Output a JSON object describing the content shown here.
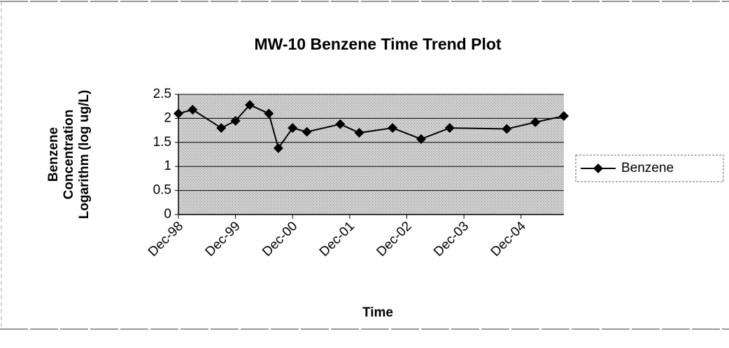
{
  "chart_data": {
    "type": "line",
    "title": "MW-10 Benzene Time Trend Plot",
    "xlabel": "Time",
    "ylabel": [
      "Benzene",
      "Concentration",
      "Logarithm (log ug/L)"
    ],
    "x": [
      "1998-12",
      "1999-03",
      "1999-09",
      "1999-12",
      "2000-03",
      "2000-07",
      "2000-09",
      "2000-12",
      "2001-03",
      "2001-10",
      "2002-02",
      "2002-09",
      "2003-03",
      "2003-09",
      "2004-09",
      "2005-03",
      "2005-09"
    ],
    "series": [
      {
        "name": "Benzene",
        "color": "#000000",
        "values": [
          2.1,
          2.18,
          1.8,
          1.95,
          2.28,
          2.1,
          1.38,
          1.8,
          1.72,
          1.88,
          1.7,
          1.8,
          1.57,
          1.8,
          1.78,
          1.92,
          2.05
        ]
      }
    ],
    "xlim": [
      "1998-12",
      "2005-09"
    ],
    "xticks": [
      {
        "value": "1998-12",
        "label": "Dec-98"
      },
      {
        "value": "1999-12",
        "label": "Dec-99"
      },
      {
        "value": "2000-12",
        "label": "Dec-00"
      },
      {
        "value": "2001-12",
        "label": "Dec-01"
      },
      {
        "value": "2002-12",
        "label": "Dec-02"
      },
      {
        "value": "2003-12",
        "label": "Dec-03"
      },
      {
        "value": "2004-12",
        "label": "Dec-04"
      }
    ],
    "ylim": [
      0,
      2.5
    ],
    "yticks": [
      0,
      0.5,
      1,
      1.5,
      2,
      2.5
    ],
    "grid": true,
    "legend": "right"
  }
}
